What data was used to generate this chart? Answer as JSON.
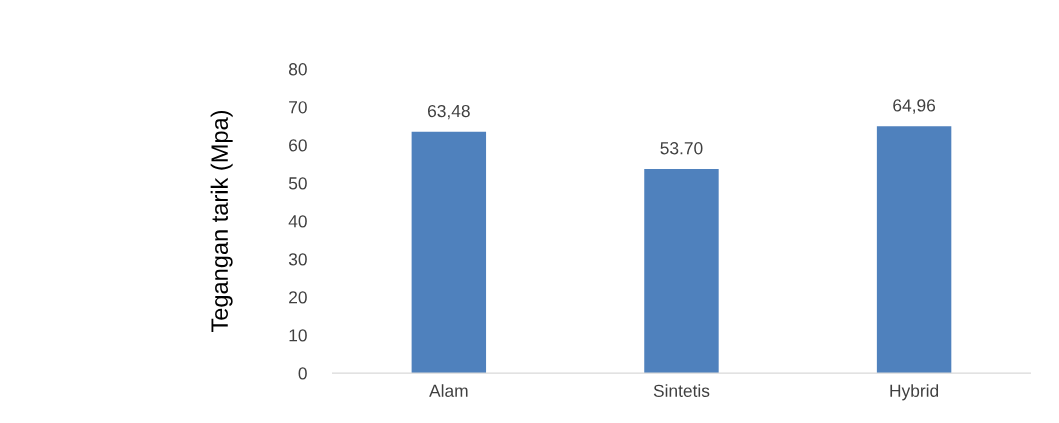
{
  "chart_data": {
    "type": "bar",
    "ylabel": "Tegangan tarik (Mpa)",
    "categories": [
      "Alam",
      "Sintetis",
      "Hybrid"
    ],
    "values": [
      63.48,
      53.7,
      64.96
    ],
    "value_labels": [
      "63,48",
      "53.70",
      "64,96"
    ],
    "color": "#4f81bd",
    "ylim": [
      0,
      80
    ],
    "yticks": [
      0,
      10,
      20,
      30,
      40,
      50,
      60,
      70,
      80
    ],
    "grid": false,
    "legend": false
  }
}
